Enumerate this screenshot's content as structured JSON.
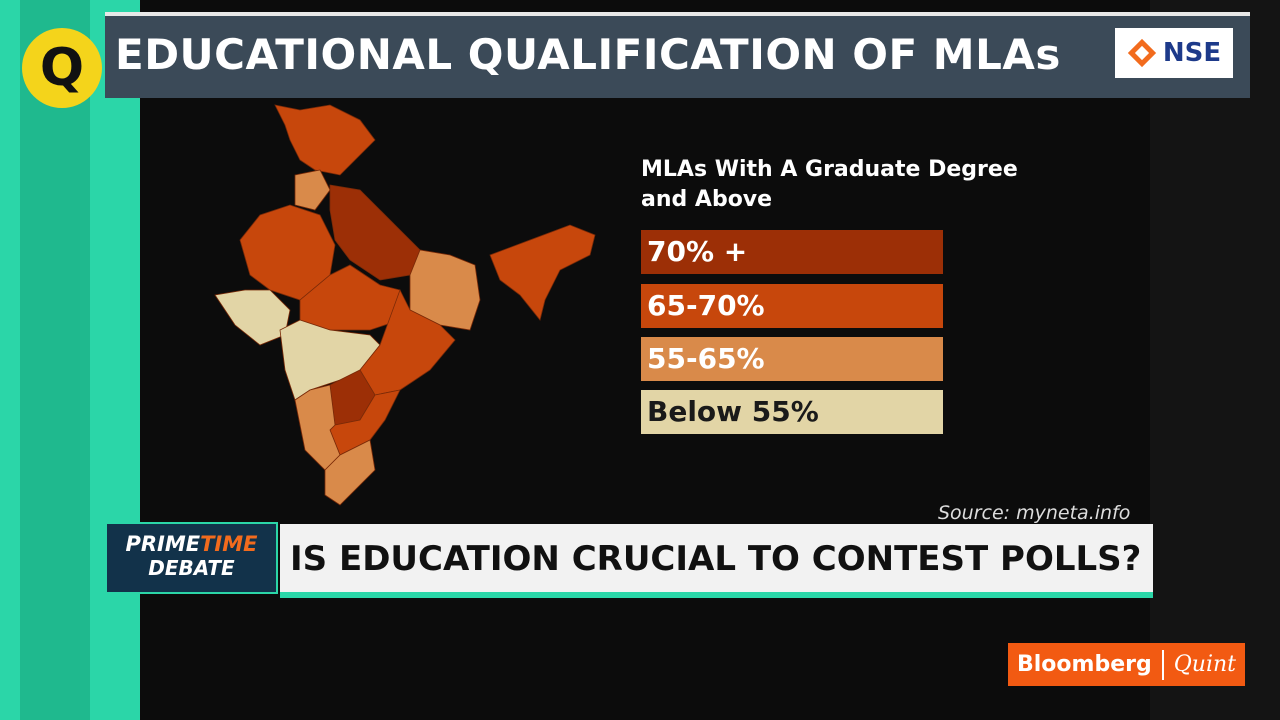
{
  "header": {
    "title": "EDUCATIONAL QUALIFICATION OF MLAs",
    "logo": "NSE",
    "channel_logo": "Q"
  },
  "legend": {
    "title": "MLAs With A Graduate Degree and Above",
    "items": [
      {
        "label": "70% +",
        "color": "#9c2f06",
        "text_color": "#ffffff"
      },
      {
        "label": "65-70%",
        "color": "#c7470c",
        "text_color": "#ffffff"
      },
      {
        "label": "55-65%",
        "color": "#d98a4a",
        "text_color": "#ffffff"
      },
      {
        "label": "Below 55%",
        "color": "#e2d5a6",
        "text_color": "#1a1a1a"
      }
    ]
  },
  "source": "Source: myneta.info",
  "lower_third": {
    "show_part1": "PRIME",
    "show_part2": "TIME",
    "show_part3": "DEBATE",
    "headline": "IS EDUCATION CRUCIAL TO CONTEST POLLS?"
  },
  "branding": {
    "left": "Bloomberg",
    "right": "Quint"
  }
}
